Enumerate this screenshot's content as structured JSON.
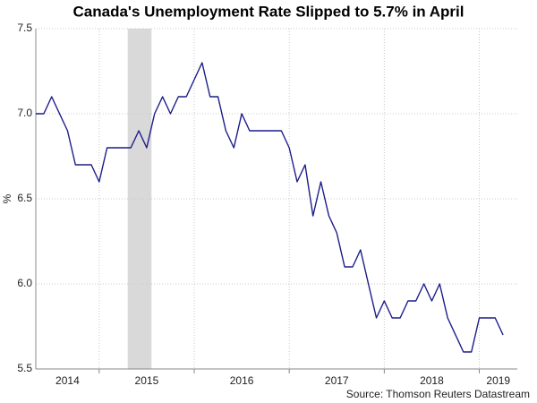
{
  "chart_data": {
    "type": "line",
    "title": "Canada's Unemployment Rate Slipped to 5.7% in April",
    "y_label": "%",
    "source": "Source: Thomson Reuters Datastream",
    "x": [
      2014.333,
      2014.417,
      2014.5,
      2014.583,
      2014.667,
      2014.75,
      2014.833,
      2014.917,
      2015,
      2015.083,
      2015.167,
      2015.25,
      2015.333,
      2015.417,
      2015.5,
      2015.583,
      2015.667,
      2015.75,
      2015.833,
      2015.917,
      2016,
      2016.083,
      2016.167,
      2016.25,
      2016.333,
      2016.417,
      2016.5,
      2016.583,
      2016.667,
      2016.75,
      2016.833,
      2016.917,
      2017,
      2017.083,
      2017.167,
      2017.25,
      2017.333,
      2017.417,
      2017.5,
      2017.583,
      2017.667,
      2017.75,
      2017.833,
      2017.917,
      2018,
      2018.083,
      2018.167,
      2018.25,
      2018.333,
      2018.417,
      2018.5,
      2018.583,
      2018.667,
      2018.75,
      2018.833,
      2018.917,
      2019,
      2019.083,
      2019.167,
      2019.25
    ],
    "values": [
      7.0,
      7.0,
      7.1,
      7.0,
      6.9,
      6.7,
      6.7,
      6.7,
      6.6,
      6.8,
      6.8,
      6.8,
      6.8,
      6.9,
      6.8,
      7.0,
      7.1,
      7.0,
      7.1,
      7.1,
      7.2,
      7.3,
      7.1,
      7.1,
      6.9,
      6.8,
      7.0,
      6.9,
      6.9,
      6.9,
      6.9,
      6.9,
      6.8,
      6.6,
      6.7,
      6.4,
      6.6,
      6.4,
      6.3,
      6.1,
      6.1,
      6.2,
      6.0,
      5.8,
      5.9,
      5.8,
      5.8,
      5.9,
      5.9,
      6.0,
      5.9,
      6.0,
      5.8,
      5.7,
      5.6,
      5.6,
      5.8,
      5.8,
      5.8,
      5.7
    ],
    "color": "#1c1c8a",
    "shaded_range": [
      2015.3,
      2015.55
    ],
    "shade_color": "#d9d9d9",
    "xlim": [
      2014.333,
      2019.4
    ],
    "xticks": [
      2014,
      2015,
      2016,
      2017,
      2018,
      2019
    ],
    "ylim": [
      5.5,
      7.5
    ],
    "yticks": [
      5.5,
      {
        "value": 6,
        "label": "6.0"
      },
      6.5,
      {
        "value": 7,
        "label": "7.0"
      },
      7.5
    ],
    "grid": true
  }
}
